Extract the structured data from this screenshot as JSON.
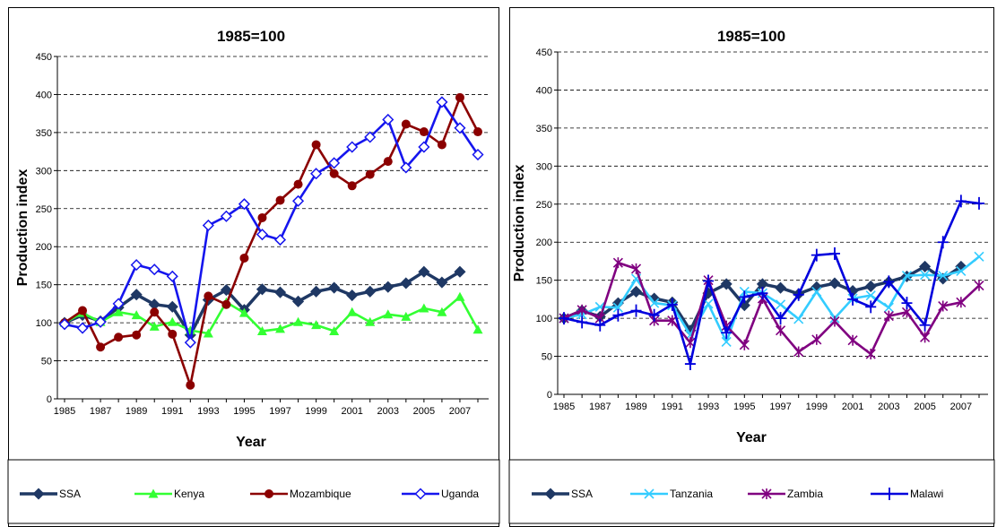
{
  "chart_data": [
    {
      "type": "line",
      "title": "1985=100",
      "xlabel": "Year",
      "ylabel": "Production index",
      "ylim": [
        0,
        450
      ],
      "yticks": [
        0,
        50,
        100,
        150,
        200,
        250,
        300,
        350,
        400,
        450
      ],
      "x": [
        1985,
        1986,
        1987,
        1988,
        1989,
        1990,
        1991,
        1992,
        1993,
        1994,
        1995,
        1996,
        1997,
        1998,
        1999,
        2000,
        2001,
        2002,
        2003,
        2004,
        2005,
        2006,
        2007,
        2008
      ],
      "xtick_labels": [
        "1985",
        "1987",
        "1989",
        "1991",
        "1993",
        "1995",
        "1997",
        "1999",
        "2001",
        "2003",
        "2005",
        "2007"
      ],
      "grid": "horizontal dashed",
      "legend_position": "bottom",
      "series": [
        {
          "name": "SSA",
          "color": "#1f3864",
          "marker": "diamond",
          "values": [
            100,
            110,
            102,
            120,
            137,
            124,
            121,
            84,
            130,
            143,
            117,
            144,
            140,
            128,
            141,
            146,
            136,
            141,
            147,
            152,
            167,
            153,
            167,
            null
          ]
        },
        {
          "name": "Kenya",
          "color": "#33ff33",
          "marker": "triangle",
          "values": [
            100,
            113,
            101,
            114,
            110,
            95,
            101,
            90,
            86,
            127,
            113,
            89,
            92,
            101,
            97,
            89,
            114,
            101,
            111,
            108,
            119,
            114,
            134,
            91
          ]
        },
        {
          "name": "Mozambique",
          "color": "#8b0000",
          "marker": "circle",
          "values": [
            100,
            116,
            68,
            81,
            84,
            114,
            85,
            18,
            135,
            124,
            185,
            238,
            261,
            282,
            334,
            296,
            280,
            295,
            312,
            361,
            351,
            334,
            396,
            351
          ]
        },
        {
          "name": "Uganda",
          "color": "#1515ee",
          "marker": "open-diamond",
          "values": [
            98,
            93,
            101,
            125,
            176,
            170,
            161,
            74,
            228,
            240,
            256,
            216,
            209,
            260,
            296,
            310,
            331,
            344,
            367,
            304,
            331,
            390,
            356,
            321
          ]
        }
      ]
    },
    {
      "type": "line",
      "title": "1985=100",
      "xlabel": "Year",
      "ylabel": "Production index",
      "ylim": [
        0,
        450
      ],
      "yticks": [
        0,
        50,
        100,
        150,
        200,
        250,
        300,
        350,
        400,
        450
      ],
      "x": [
        1985,
        1986,
        1987,
        1988,
        1989,
        1990,
        1991,
        1992,
        1993,
        1994,
        1995,
        1996,
        1997,
        1998,
        1999,
        2000,
        2001,
        2002,
        2003,
        2004,
        2005,
        2006,
        2007,
        2008
      ],
      "xtick_labels": [
        "1985",
        "1987",
        "1989",
        "1991",
        "1993",
        "1995",
        "1997",
        "1999",
        "2001",
        "2003",
        "2005",
        "2007"
      ],
      "grid": "horizontal dashed",
      "legend_position": "bottom",
      "series": [
        {
          "name": "SSA",
          "color": "#1f3864",
          "marker": "diamond",
          "values": [
            100,
            110,
            102,
            120,
            135,
            126,
            121,
            84,
            133,
            145,
            117,
            145,
            140,
            132,
            141,
            146,
            136,
            142,
            148,
            155,
            168,
            152,
            168,
            null
          ]
        },
        {
          "name": "Tanzania",
          "color": "#33ccff",
          "marker": "x",
          "values": [
            100,
            105,
            115,
            114,
            152,
            120,
            117,
            78,
            119,
            69,
            135,
            133,
            118,
            99,
            135,
            100,
            126,
            130,
            114,
            156,
            157,
            156,
            162,
            181
          ]
        },
        {
          "name": "Zambia",
          "color": "#800080",
          "marker": "star",
          "values": [
            100,
            111,
            100,
            173,
            165,
            97,
            97,
            68,
            150,
            90,
            65,
            126,
            84,
            56,
            72,
            96,
            71,
            53,
            103,
            108,
            75,
            116,
            121,
            143
          ]
        },
        {
          "name": "Malawi",
          "color": "#0000dd",
          "marker": "plus",
          "values": [
            100,
            95,
            91,
            104,
            110,
            104,
            118,
            40,
            149,
            81,
            128,
            133,
            100,
            131,
            183,
            185,
            125,
            115,
            148,
            120,
            91,
            200,
            254,
            251
          ]
        }
      ]
    }
  ]
}
